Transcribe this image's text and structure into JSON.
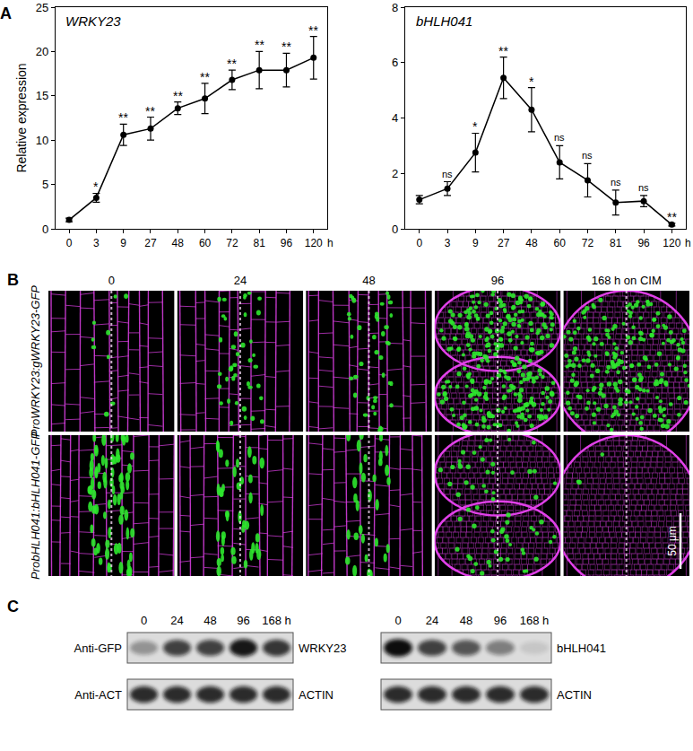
{
  "chart_data": [
    {
      "type": "line",
      "title": "WRKY23",
      "ylabel": "Relative expression",
      "xlabel": "h",
      "categories": [
        "0",
        "3",
        "9",
        "27",
        "48",
        "60",
        "72",
        "81",
        "96",
        "120"
      ],
      "values": [
        1.0,
        3.5,
        10.6,
        11.3,
        13.6,
        14.7,
        16.8,
        17.9,
        17.9,
        19.3
      ],
      "errors": [
        0.2,
        0.5,
        1.2,
        1.3,
        0.7,
        1.7,
        1.1,
        2.1,
        1.9,
        2.4
      ],
      "significance": [
        null,
        "*",
        "**",
        "**",
        "**",
        "**",
        "**",
        "**",
        "**",
        "**"
      ],
      "color": "#000000",
      "marker": "circle",
      "line_style": "solid",
      "ylim": [
        0,
        25
      ],
      "yticks": [
        0,
        5,
        10,
        15,
        20,
        25
      ]
    },
    {
      "type": "line",
      "title": "bHLH041",
      "xlabel": "h",
      "categories": [
        "0",
        "3",
        "9",
        "27",
        "48",
        "60",
        "72",
        "81",
        "96",
        "120"
      ],
      "values": [
        1.05,
        1.45,
        2.75,
        5.45,
        4.3,
        2.4,
        1.75,
        0.95,
        1.0,
        0.15
      ],
      "errors": [
        0.15,
        0.25,
        0.7,
        0.75,
        0.8,
        0.6,
        0.6,
        0.45,
        0.2,
        0.05
      ],
      "significance": [
        null,
        "ns",
        "*",
        "**",
        "*",
        "ns",
        "ns",
        "ns",
        "ns",
        "**"
      ],
      "color": "#000000",
      "marker": "circle",
      "line_style": "solid",
      "ylim": [
        0,
        8
      ],
      "yticks": [
        0,
        2,
        4,
        6,
        8
      ]
    }
  ],
  "panel_labels": [
    "A",
    "B",
    "C"
  ],
  "microscopy": {
    "columns": [
      "0",
      "24",
      "48",
      "96",
      "168 h on CIM"
    ],
    "rows": [
      "ProWRKY23:gWRKY23-GFP",
      "ProbHLH041:bHLH041-GFP"
    ],
    "scale_bar": "50 μm"
  },
  "blots": [
    {
      "times": [
        "0",
        "24",
        "48",
        "96",
        "168 h"
      ],
      "rows": [
        {
          "antibody": "Anti-GFP",
          "protein": "WRKY23",
          "intensity": [
            0.35,
            0.75,
            0.75,
            0.95,
            0.8
          ]
        },
        {
          "antibody": "Anti-ACT",
          "protein": "ACTIN",
          "intensity": [
            0.85,
            0.85,
            0.85,
            0.85,
            0.85
          ]
        }
      ]
    },
    {
      "times": [
        "0",
        "24",
        "48",
        "96",
        "168 h"
      ],
      "rows": [
        {
          "antibody": null,
          "protein": "bHLH041",
          "intensity": [
            1.0,
            0.75,
            0.65,
            0.45,
            0.1
          ]
        },
        {
          "antibody": null,
          "protein": "ACTIN",
          "intensity": [
            0.85,
            0.85,
            0.85,
            0.85,
            0.85
          ]
        }
      ]
    }
  ]
}
